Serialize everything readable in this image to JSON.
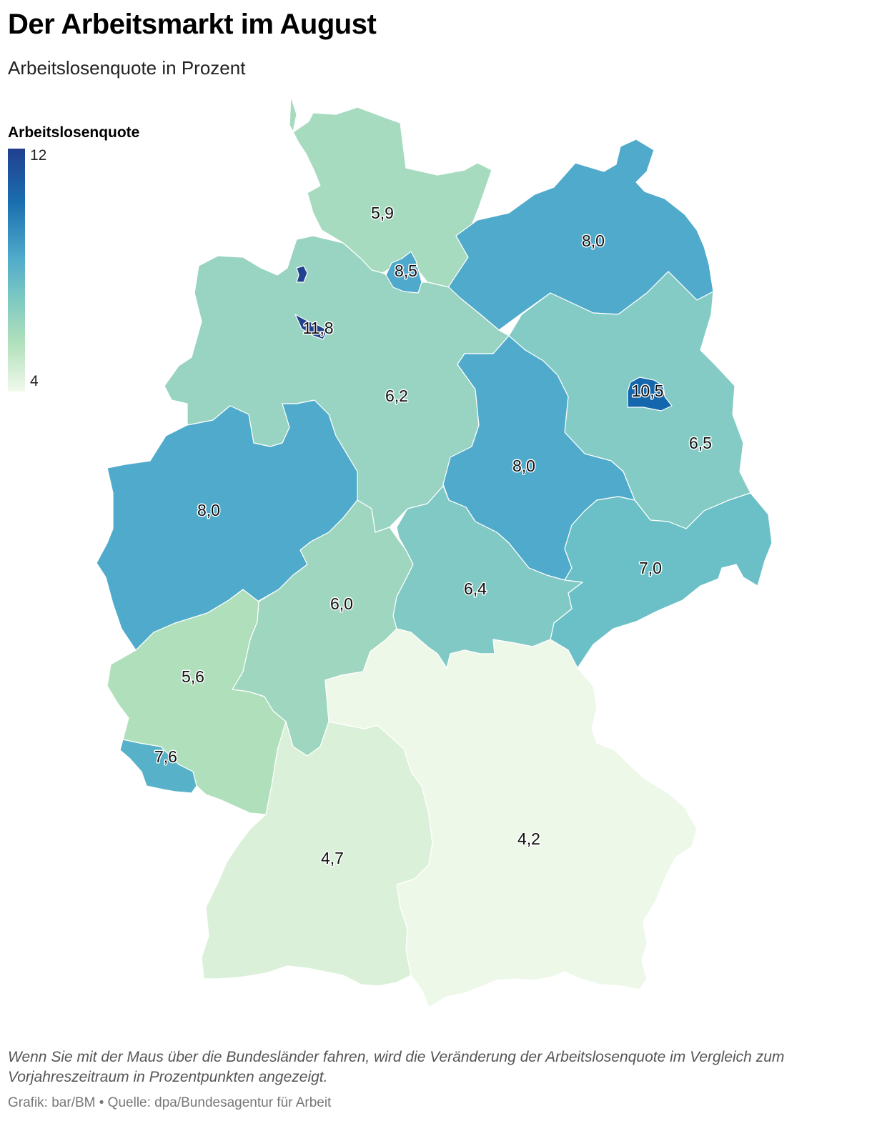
{
  "header": {
    "title": "Der Arbeitsmarkt im August",
    "subtitle": "Arbeitslosenquote in Prozent"
  },
  "legend": {
    "title": "Arbeitslosenquote",
    "max_label": "12",
    "min_label": "4",
    "color_min": "#f1f9ec",
    "color_max": "#213f8f"
  },
  "map_data": {
    "type": "choropleth",
    "scale": {
      "min": 4,
      "max": 12
    },
    "regions": [
      {
        "id": "sh",
        "value": 5.9,
        "label": "5,9",
        "color": "#a6dbbf"
      },
      {
        "id": "hh",
        "value": 8.5,
        "label": "8,5",
        "color": "#4fa9cc"
      },
      {
        "id": "mv",
        "value": 8.0,
        "label": "8,0",
        "color": "#4faacb"
      },
      {
        "id": "ni",
        "value": 6.2,
        "label": "6,2",
        "color": "#98d4c1"
      },
      {
        "id": "hb",
        "value": 11.8,
        "label": "11,8",
        "color": "#22418e"
      },
      {
        "id": "be",
        "value": 10.5,
        "label": "10,5",
        "color": "#1467ac"
      },
      {
        "id": "bb",
        "value": 6.5,
        "label": "6,5",
        "color": "#84cbc6"
      },
      {
        "id": "st",
        "value": 8.0,
        "label": "8,0",
        "color": "#4faacb"
      },
      {
        "id": "nw",
        "value": 8.0,
        "label": "8,0",
        "color": "#4faacb"
      },
      {
        "id": "sn",
        "value": 7.0,
        "label": "7,0",
        "color": "#6bc0c8"
      },
      {
        "id": "th",
        "value": 6.4,
        "label": "6,4",
        "color": "#80c9c5"
      },
      {
        "id": "he",
        "value": 6.0,
        "label": "6,0",
        "color": "#9fd6c0"
      },
      {
        "id": "rp",
        "value": 5.6,
        "label": "5,6",
        "color": "#b0e0bb"
      },
      {
        "id": "sl",
        "value": 7.6,
        "label": "7,6",
        "color": "#57b2c9"
      },
      {
        "id": "bw",
        "value": 4.7,
        "label": "4,7",
        "color": "#dbf0d9"
      },
      {
        "id": "by",
        "value": 4.2,
        "label": "4,2",
        "color": "#eef8e9"
      }
    ]
  },
  "footer": {
    "note": "Wenn Sie mit der Maus über die Bundesländer fahren, wird die Veränderung der Arbeitslosenquote im Vergleich zum Vorjahreszeitraum in Prozentpunkten angezeigt.",
    "credit": "Grafik: bar/BM • Quelle: dpa/Bundesagentur für Arbeit"
  }
}
